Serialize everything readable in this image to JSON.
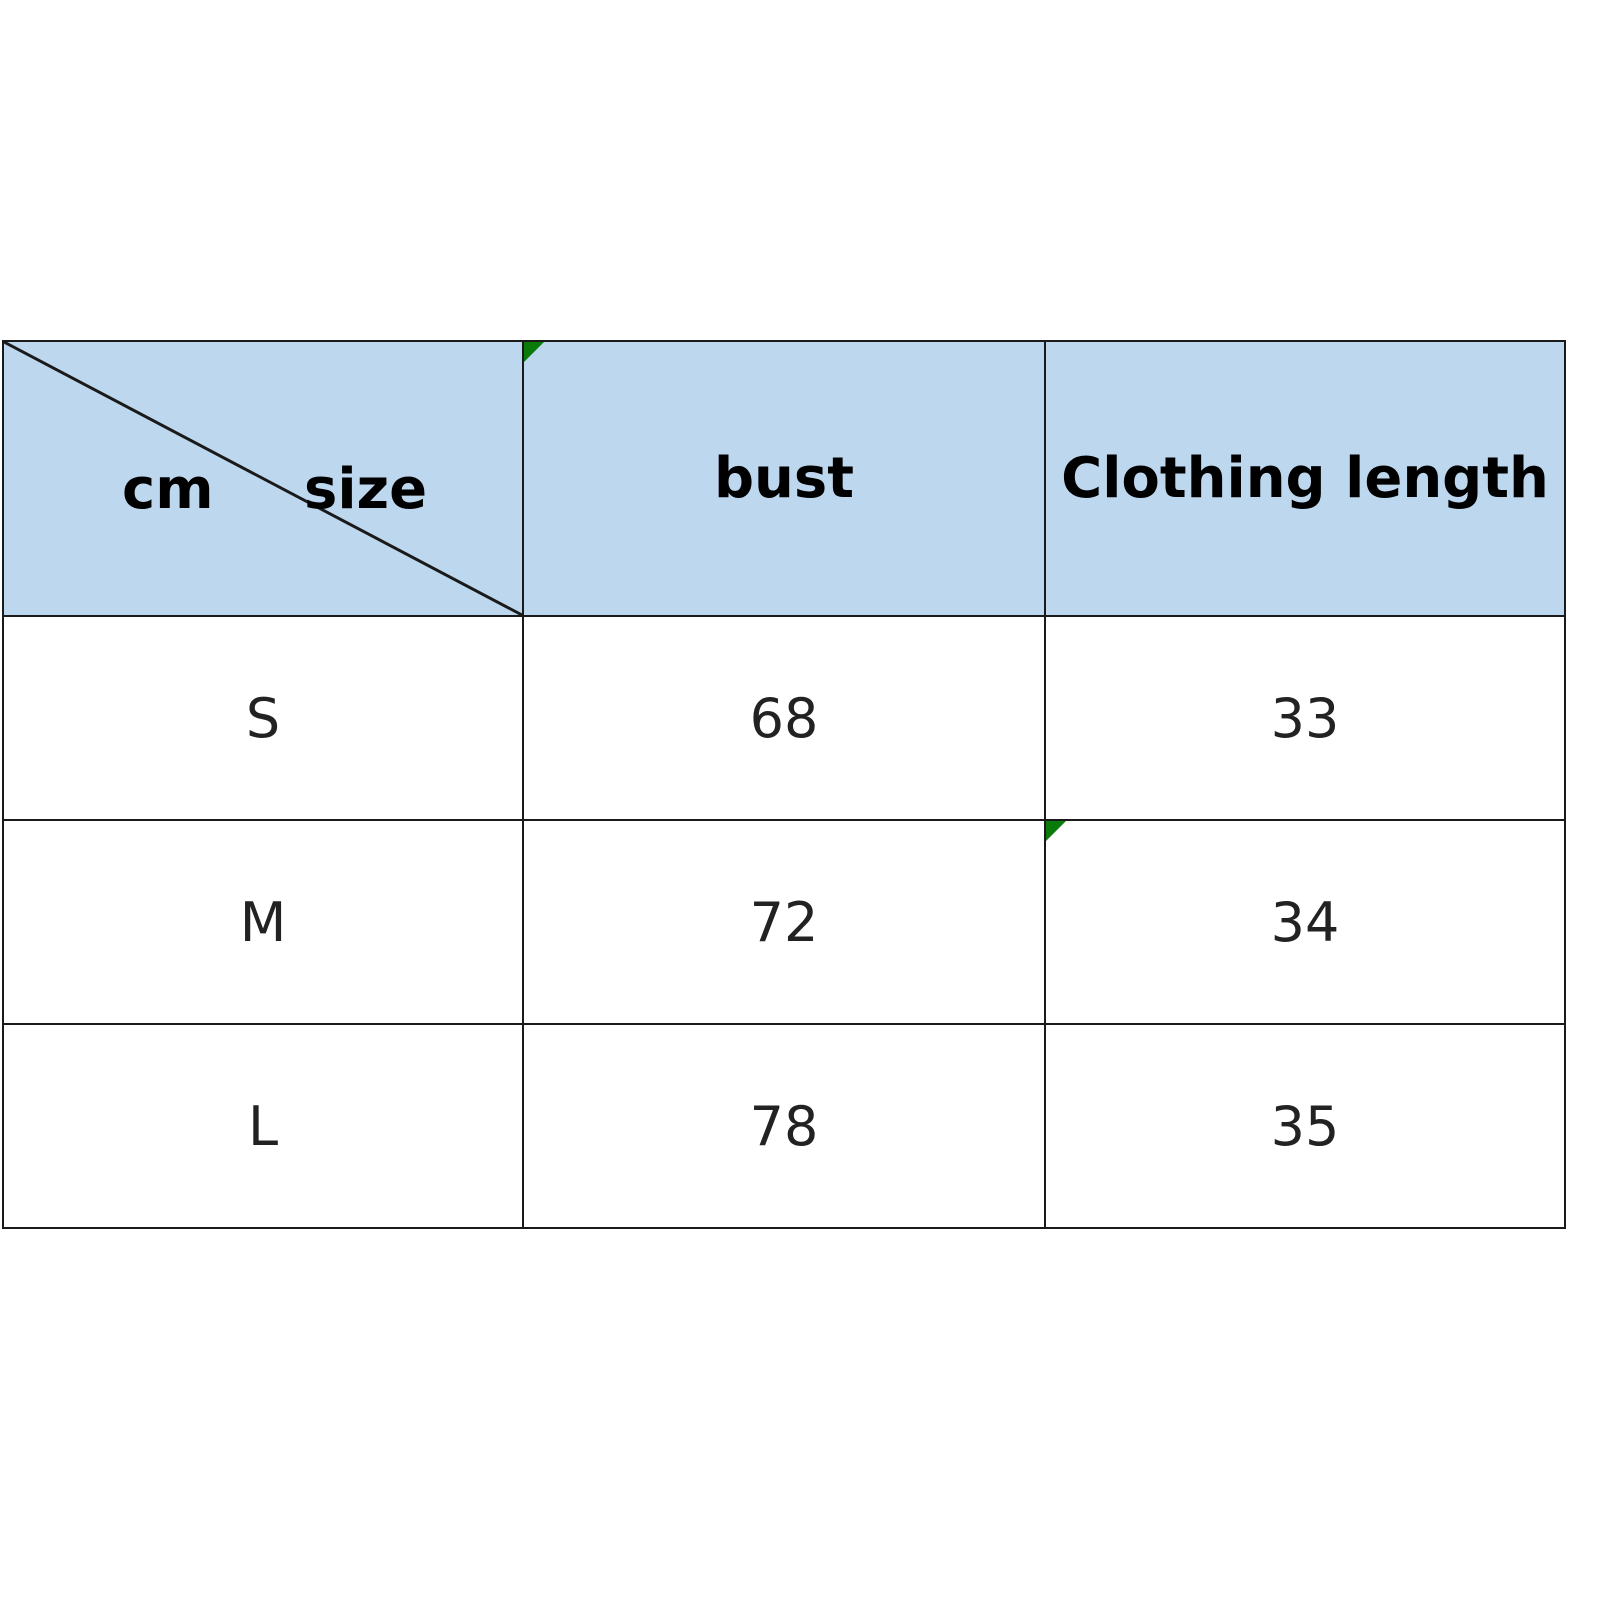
{
  "table": {
    "corner": {
      "left_label": "cm",
      "right_label": "size"
    },
    "headers": [
      "bust",
      "Clothing length"
    ],
    "rows": [
      {
        "size": "S",
        "bust": "68",
        "length": "33"
      },
      {
        "size": "M",
        "bust": "72",
        "length": "34"
      },
      {
        "size": "L",
        "bust": "78",
        "length": "35"
      }
    ],
    "colors": {
      "header_fill": "#BDD7EE",
      "border": "#1a1a1a",
      "comment_marker": "#0a7a0a"
    }
  }
}
